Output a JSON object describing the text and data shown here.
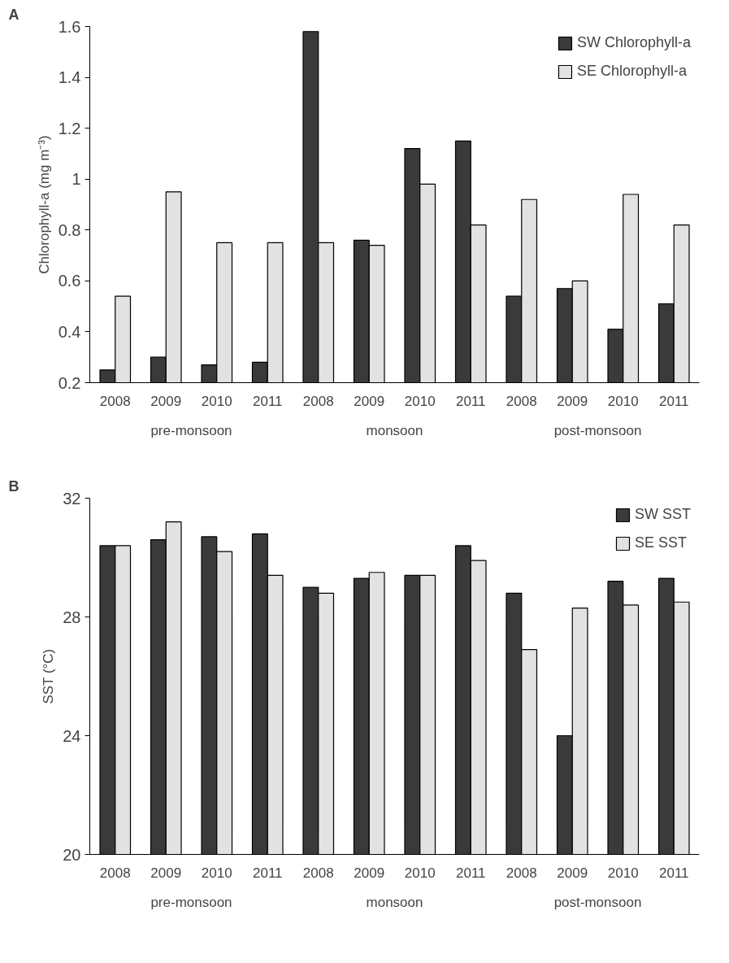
{
  "chart_data": [
    {
      "type": "bar",
      "title": "A",
      "ylabel": "Chlorophyll-a (mg m⁻³)",
      "categories": [
        "2008",
        "2009",
        "2010",
        "2011",
        "2008",
        "2009",
        "2010",
        "2011",
        "2008",
        "2009",
        "2010",
        "2011"
      ],
      "annotations": [
        "pre-monsoon",
        "monsoon",
        "post-monsoon"
      ],
      "series": [
        {
          "name": "SW Chlorophyll-a",
          "color": "#3a3a3a",
          "values": [
            0.25,
            0.3,
            0.27,
            0.28,
            1.58,
            0.76,
            1.12,
            1.15,
            0.54,
            0.57,
            0.41,
            0.51
          ]
        },
        {
          "name": "SE Chlorophyll-a",
          "color": "#e2e2e2",
          "values": [
            0.54,
            0.95,
            0.75,
            0.75,
            0.75,
            0.74,
            0.98,
            0.82,
            0.92,
            0.6,
            0.94,
            0.82
          ]
        }
      ],
      "ylim": [
        0.2,
        1.6
      ],
      "yticks": [
        0.2,
        0.4,
        0.6,
        0.8,
        1,
        1.2,
        1.4,
        1.6
      ],
      "legend": "top right"
    },
    {
      "type": "bar",
      "title": "B",
      "ylabel": "SST (°C)",
      "categories": [
        "2008",
        "2009",
        "2010",
        "2011",
        "2008",
        "2009",
        "2010",
        "2011",
        "2008",
        "2009",
        "2010",
        "2011"
      ],
      "annotations": [
        "pre-monsoon",
        "monsoon",
        "post-monsoon"
      ],
      "series": [
        {
          "name": "SW SST",
          "color": "#3a3a3a",
          "values": [
            30.4,
            30.6,
            30.7,
            30.8,
            29.0,
            29.3,
            29.4,
            30.4,
            28.8,
            24.0,
            29.2,
            29.3
          ]
        },
        {
          "name": "SE SST",
          "color": "#e2e2e2",
          "values": [
            30.4,
            31.2,
            30.2,
            29.4,
            28.8,
            29.5,
            29.4,
            29.9,
            26.9,
            28.3,
            28.4,
            28.5
          ]
        }
      ],
      "ylim": [
        20,
        32
      ],
      "yticks": [
        20,
        24,
        28,
        32
      ],
      "legend": "top right"
    }
  ]
}
